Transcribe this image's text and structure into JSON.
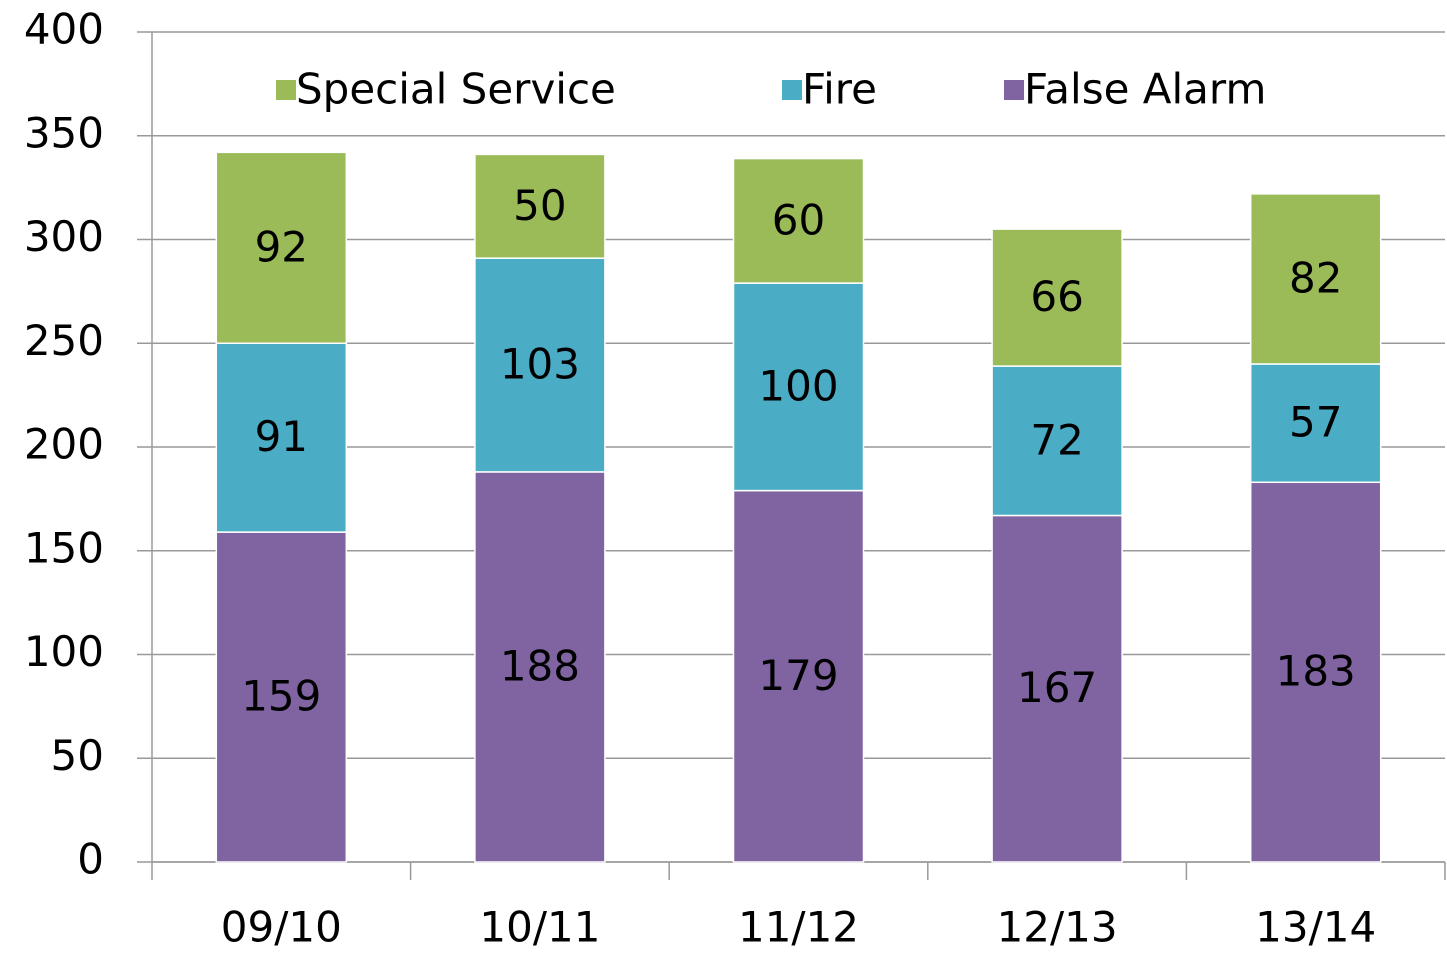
{
  "chart_data": {
    "type": "stacked_bar",
    "categories": [
      "09/10",
      "10/11",
      "11/12",
      "12/13",
      "13/14"
    ],
    "series": [
      {
        "name": "False Alarm",
        "color": "#8064a2",
        "values": [
          159,
          188,
          179,
          167,
          183
        ]
      },
      {
        "name": "Fire",
        "color": "#4bacc6",
        "values": [
          91,
          103,
          100,
          72,
          57
        ]
      },
      {
        "name": "Special Service",
        "color": "#9bbb59",
        "values": [
          92,
          50,
          60,
          66,
          82
        ]
      }
    ],
    "ylim": [
      0,
      400
    ],
    "yticks": [
      0,
      50,
      100,
      150,
      200,
      250,
      300,
      350,
      400
    ],
    "grid": true,
    "legend": "top"
  }
}
